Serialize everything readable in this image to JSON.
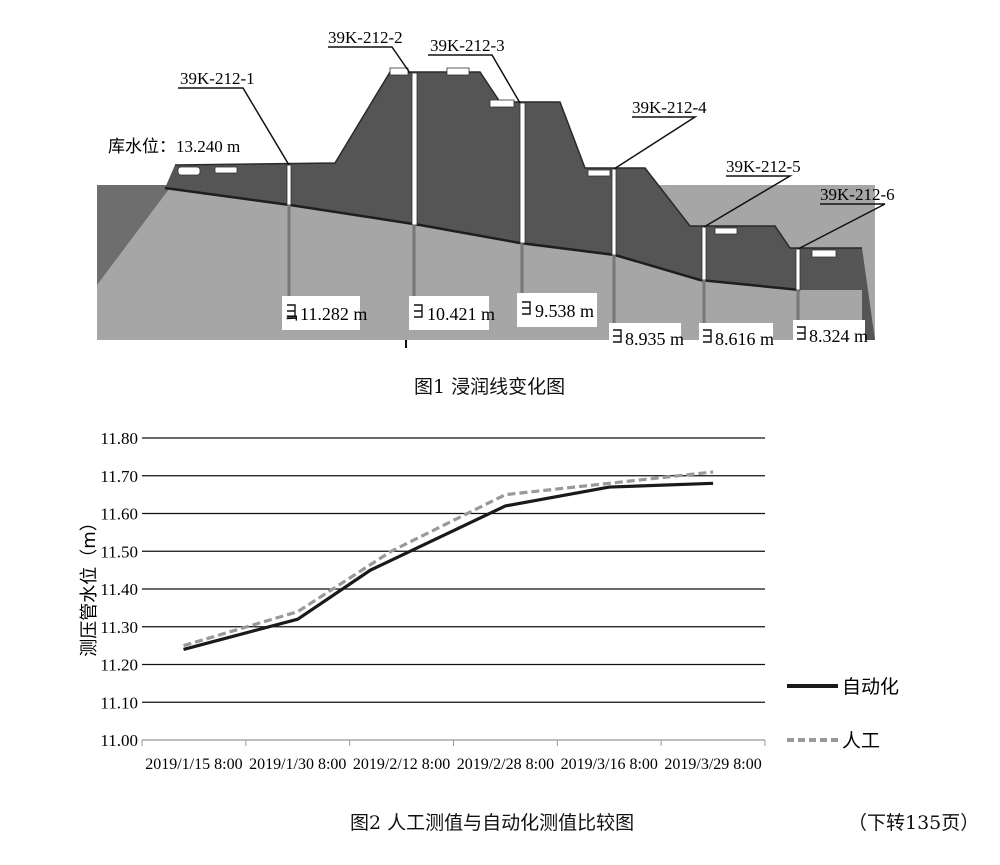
{
  "figure1": {
    "caption": "图1 浸润线变化图",
    "reservoir_label": "库水位：13.240 m",
    "piezometers": [
      {
        "id": "39K-212-1",
        "value": "11.282 m"
      },
      {
        "id": "39K-212-2",
        "value": "10.421 m"
      },
      {
        "id": "39K-212-3",
        "value": "9.538 m"
      },
      {
        "id": "39K-212-4",
        "value": "8.935 m"
      },
      {
        "id": "39K-212-5",
        "value": "8.616 m"
      },
      {
        "id": "39K-212-6",
        "value": "8.324 m"
      }
    ],
    "colors": {
      "embankment": "#555555",
      "foundation": "#a6a6a6",
      "water": "#6e6e6e"
    }
  },
  "figure2": {
    "caption": "图2 人工测值与自动化测值比较图",
    "continued": "（下转135页）"
  },
  "chart_data": {
    "type": "line",
    "ylabel": "测压管水位（m）",
    "xlabel": "",
    "ylim": [
      11.0,
      11.8
    ],
    "ytick_step": 0.1,
    "yticks": [
      "11.00",
      "11.10",
      "11.20",
      "11.30",
      "11.40",
      "11.50",
      "11.60",
      "11.70",
      "11.80"
    ],
    "categories": [
      "2019/1/15 8:00",
      "2019/1/30 8:00",
      "2019/2/12 8:00",
      "2019/2/28 8:00",
      "2019/3/16 8:00",
      "2019/3/29 8:00"
    ],
    "grid": true,
    "legend_position": "right",
    "series": [
      {
        "name": "自动化",
        "color": "#1a1a1a",
        "style": "solid",
        "points": [
          [
            0.4,
            11.24
          ],
          [
            1.5,
            11.32
          ],
          [
            2.2,
            11.45
          ],
          [
            3.5,
            11.62
          ],
          [
            4.5,
            11.67
          ],
          [
            5.5,
            11.68
          ]
        ]
      },
      {
        "name": "人工",
        "color": "#999999",
        "style": "dashed",
        "points": [
          [
            0.4,
            11.25
          ],
          [
            1.5,
            11.34
          ],
          [
            2.4,
            11.5
          ],
          [
            3.5,
            11.65
          ],
          [
            4.5,
            11.68
          ],
          [
            5.5,
            11.71
          ]
        ]
      }
    ]
  }
}
